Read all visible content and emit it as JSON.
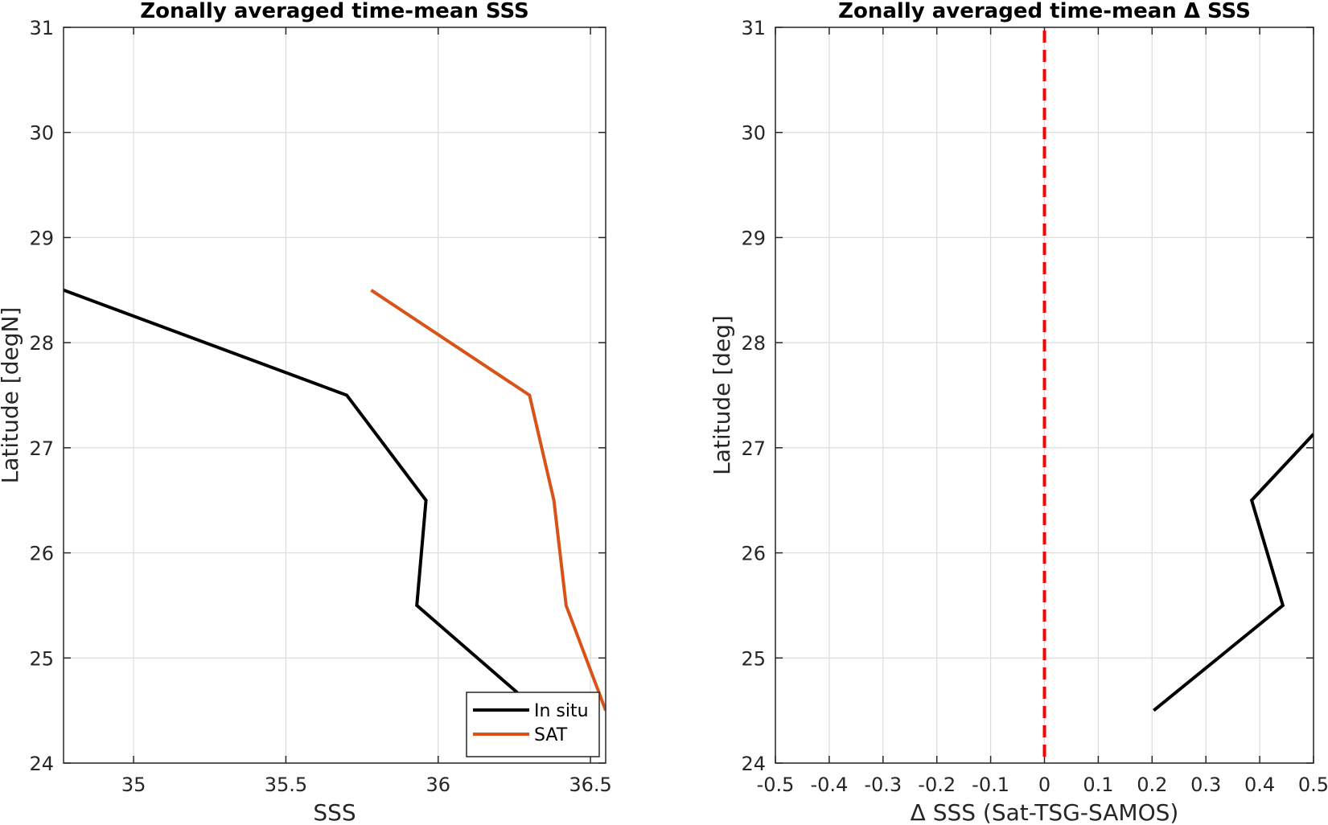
{
  "chart_data": [
    {
      "type": "line",
      "title": "Zonally averaged time-mean SSS",
      "xlabel": "SSS",
      "ylabel": "Latitude [degN]",
      "xlim": [
        34.77,
        36.55
      ],
      "ylim": [
        24,
        31
      ],
      "xticks": [
        35,
        35.5,
        36,
        36.5
      ],
      "xtick_labels": [
        "35",
        "35.5",
        "36",
        "36.5"
      ],
      "yticks": [
        24,
        25,
        26,
        27,
        28,
        29,
        30,
        31
      ],
      "ytick_labels": [
        "24",
        "25",
        "26",
        "27",
        "28",
        "29",
        "30",
        "31"
      ],
      "grid": true,
      "legend_position": "bottom-right",
      "series": [
        {
          "name": "In situ",
          "color": "#000000",
          "points": [
            {
              "x": 34.77,
              "y": 28.5
            },
            {
              "x": 35.7,
              "y": 27.5
            },
            {
              "x": 35.96,
              "y": 26.5
            },
            {
              "x": 35.93,
              "y": 25.5
            },
            {
              "x": 36.26,
              "y": 24.67
            }
          ]
        },
        {
          "name": "SAT",
          "color": "#D95319",
          "points": [
            {
              "x": 35.78,
              "y": 28.5
            },
            {
              "x": 36.3,
              "y": 27.5
            },
            {
              "x": 36.38,
              "y": 26.5
            },
            {
              "x": 36.42,
              "y": 25.5
            },
            {
              "x": 36.55,
              "y": 24.5
            }
          ]
        }
      ]
    },
    {
      "type": "line",
      "title": "Zonally averaged time-mean Δ SSS",
      "xlabel": "Δ SSS (Sat-TSG-SAMOS)",
      "ylabel": "Latitude [deg]",
      "xlim": [
        -0.5,
        0.5
      ],
      "ylim": [
        24,
        31
      ],
      "xticks": [
        -0.5,
        -0.4,
        -0.3,
        -0.2,
        -0.1,
        0,
        0.1,
        0.2,
        0.3,
        0.4,
        0.5
      ],
      "xtick_labels": [
        "-0.5",
        "-0.4",
        "-0.3",
        "-0.2",
        "-0.1",
        "0",
        "0.1",
        "0.2",
        "0.3",
        "0.4",
        "0.5"
      ],
      "yticks": [
        24,
        25,
        26,
        27,
        28,
        29,
        30,
        31
      ],
      "ytick_labels": [
        "24",
        "25",
        "26",
        "27",
        "28",
        "29",
        "30",
        "31"
      ],
      "grid": true,
      "reference_line": {
        "x": 0,
        "color": "#FF0000",
        "style": "dashed"
      },
      "series": [
        {
          "color": "#000000",
          "points": [
            {
              "x": 0.5,
              "y": 27.13
            },
            {
              "x": 0.385,
              "y": 26.5
            },
            {
              "x": 0.443,
              "y": 25.5
            },
            {
              "x": 0.203,
              "y": 24.5
            }
          ]
        }
      ]
    }
  ]
}
